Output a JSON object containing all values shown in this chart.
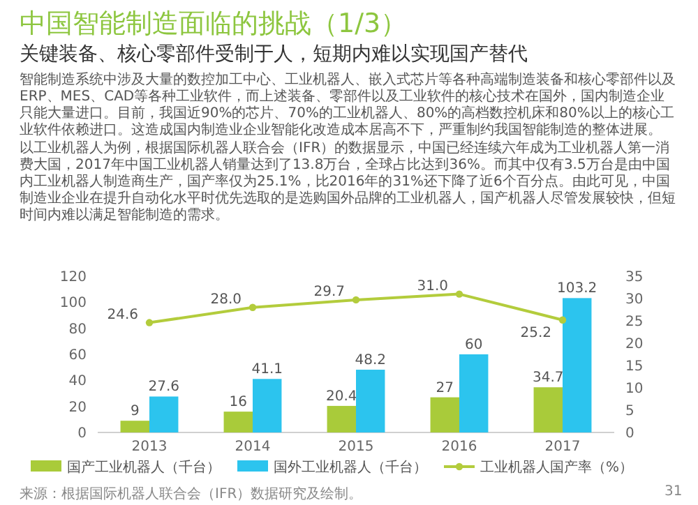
{
  "chart_data": {
    "type": "bar",
    "title": "中国智能制造面临的挑战（1/3）",
    "subtitle": "关键装备、核心零部件受制于人，短期内难以实现国产替代",
    "annotations": [
      "智能制造系统中涉及大量的数控加工中心、工业机器人、嵌入式芯片等各种高端制造装备和核心零部件以及ERP、MES、CAD等各种工业软件，而上述装备、零部件以及工业软件的核心技术在国外，国内制造企业只能大量进口。目前，我国近90%的芯片、70%的工业机器人、80%的高档数控机床和80%以上的核心工业软件依赖进口。这造成国内制造业企业智能化改造成本居高不下，严重制约我国智能制造的整体进展。",
      "以工业机器人为例，根据国际机器人联合会（IFR）的数据显示，中国已经连续六年成为工业机器人第一消费大国，2017年中国工业机器人销量达到了13.8万台，全球占比达到36%。而其中仅有3.5万台是由中国内工业机器人制造商生产，国产率仅为25.1%，比2016年的31%还下降了近6个百分点。由此可见，中国制造业企业在提升自动化水平时优先选取的是选购国外品牌的工业机器人，国产机器人尽管发展较快，但短时间内难以满足智能制造的需求。",
      "来源：根据国际机器人联合会（IFR）数据研究及绘制。",
      "31"
    ],
    "categories": [
      "2013",
      "2014",
      "2015",
      "2016",
      "2017"
    ],
    "series": [
      {
        "name": "国产工业机器人（千台）",
        "color": "#a9cb3a",
        "values": [
          9,
          16,
          20.4,
          27,
          34.7
        ],
        "value_labels": [
          "9",
          "16",
          "20.4",
          "27",
          "34.7"
        ]
      },
      {
        "name": "国外工业机器人（千台）",
        "color": "#2cc4ee",
        "values": [
          27.6,
          41.1,
          48.2,
          60,
          103.2
        ],
        "value_labels": [
          "27.6",
          "41.1",
          "48.2",
          "60",
          "103.2"
        ]
      },
      {
        "name": "工业机器人国产率（%）",
        "type": "line",
        "axis": "y2",
        "color": "#b3cc3c",
        "values": [
          24.6,
          28.0,
          29.7,
          31.0,
          25.2
        ],
        "value_labels": [
          "24.6",
          "28.0",
          "29.7",
          "31.0",
          "25.2"
        ]
      }
    ],
    "ylim": [
      0,
      120
    ],
    "yticks": [
      0,
      20,
      40,
      60,
      80,
      100,
      120
    ],
    "y2lim": [
      0,
      35
    ],
    "y2ticks": [
      0,
      5,
      10,
      15,
      20,
      25,
      30,
      35
    ],
    "marker": "circle",
    "legend": "bottom",
    "grid": false
  }
}
